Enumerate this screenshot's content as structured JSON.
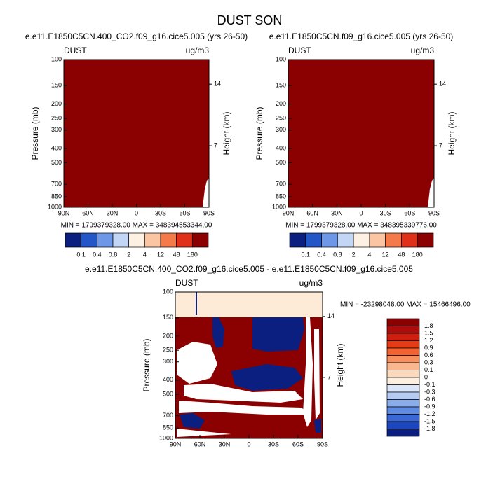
{
  "title": "DUST SON",
  "chart_data": [
    {
      "type": "contour",
      "title": "e.e11.E1850C5CN.400_CO2.f09_g16.cice5.005 (yrs 26-50)",
      "left_label": "DUST",
      "right_label": "ug/m3",
      "ylabel": "Pressure (mb)",
      "y2label": "Height (km)",
      "log_y": true,
      "xlim": [
        90,
        -90
      ],
      "xticks": [
        {
          "value": 90,
          "label": "90N"
        },
        {
          "value": 60,
          "label": "60N"
        },
        {
          "value": 30,
          "label": "30N"
        },
        0,
        {
          "value": -30,
          "label": "30S"
        },
        {
          "value": -60,
          "label": "60S"
        },
        {
          "value": -90,
          "label": "90S"
        }
      ],
      "ylim": [
        1000,
        100
      ],
      "yticks": [
        100,
        150,
        200,
        250,
        300,
        400,
        500,
        700,
        850,
        1000
      ],
      "y2lim": [
        0,
        16.8
      ],
      "y2ticks": [
        14,
        7
      ],
      "stats": "MIN = 1799379328.00   MAX = 348394553344.00",
      "colorbar": {
        "orientation": "horizontal",
        "levels": [
          0.1,
          0.4,
          0.8,
          2,
          4,
          12,
          48,
          180
        ],
        "colors": [
          "#0a1f80",
          "#2357c8",
          "#6f97e8",
          "#c3d6f5",
          "#fdf1e4",
          "#fbc4a2",
          "#f47a4a",
          "#e0301a",
          "#8b0000"
        ]
      }
    },
    {
      "type": "contour",
      "title": "e.e11.E1850C5CN.f09_g16.cice5.005 (yrs 26-50)",
      "left_label": "DUST",
      "right_label": "ug/m3",
      "ylabel": "Pressure (mb)",
      "y2label": "Height (km)",
      "log_y": true,
      "xlim": [
        90,
        -90
      ],
      "xticks": [
        {
          "value": 90,
          "label": "90N"
        },
        {
          "value": 60,
          "label": "60N"
        },
        {
          "value": 30,
          "label": "30N"
        },
        0,
        {
          "value": -30,
          "label": "30S"
        },
        {
          "value": -60,
          "label": "60S"
        },
        {
          "value": -90,
          "label": "90S"
        }
      ],
      "ylim": [
        1000,
        100
      ],
      "yticks": [
        100,
        150,
        200,
        250,
        300,
        400,
        500,
        700,
        850,
        1000
      ],
      "y2lim": [
        0,
        16.8
      ],
      "y2ticks": [
        14,
        7
      ],
      "stats": "MIN = 1799379328.00   MAX = 348395339776.00",
      "colorbar": {
        "orientation": "horizontal",
        "levels": [
          0.1,
          0.4,
          0.8,
          2,
          4,
          12,
          48,
          180
        ],
        "colors": [
          "#0a1f80",
          "#2357c8",
          "#6f97e8",
          "#c3d6f5",
          "#fdf1e4",
          "#fbc4a2",
          "#f47a4a",
          "#e0301a",
          "#8b0000"
        ]
      }
    },
    {
      "type": "contour",
      "title": "e.e11.E1850C5CN.400_CO2.f09_g16.cice5.005 - e.e11.E1850C5CN.f09_g16.cice5.005",
      "left_label": "DUST",
      "right_label": "ug/m3",
      "ylabel": "Pressure (mb)",
      "y2label": "Height (km)",
      "log_y": true,
      "xlim": [
        90,
        -90
      ],
      "xticks": [
        {
          "value": 90,
          "label": "90N"
        },
        {
          "value": 60,
          "label": "60N"
        },
        {
          "value": 30,
          "label": "30N"
        },
        0,
        {
          "value": -30,
          "label": "30S"
        },
        {
          "value": -60,
          "label": "60S"
        },
        {
          "value": -90,
          "label": "90S"
        }
      ],
      "ylim": [
        1000,
        100
      ],
      "yticks": [
        100,
        150,
        200,
        250,
        300,
        400,
        500,
        700,
        850,
        1000
      ],
      "y2lim": [
        0,
        16.8
      ],
      "y2ticks": [
        14,
        7
      ],
      "stats": "MIN = -23298048.00   MAX = 15466496.00",
      "colorbar": {
        "orientation": "vertical",
        "levels": [
          1.8,
          1.5,
          1.2,
          0.9,
          0.6,
          0.3,
          0.1,
          0,
          -0.1,
          -0.3,
          -0.6,
          -0.9,
          -1.2,
          -1.5,
          -1.8
        ],
        "colors": [
          "#8b0000",
          "#ad0c0c",
          "#cc1f10",
          "#e43c14",
          "#f26332",
          "#f78f5e",
          "#fab78e",
          "#fcd9bd",
          "#fdefe0",
          "#dbe6f8",
          "#b5cbf1",
          "#8aaceb",
          "#5f8be2",
          "#3a68d4",
          "#1c46bd",
          "#0a1f80"
        ]
      }
    }
  ]
}
